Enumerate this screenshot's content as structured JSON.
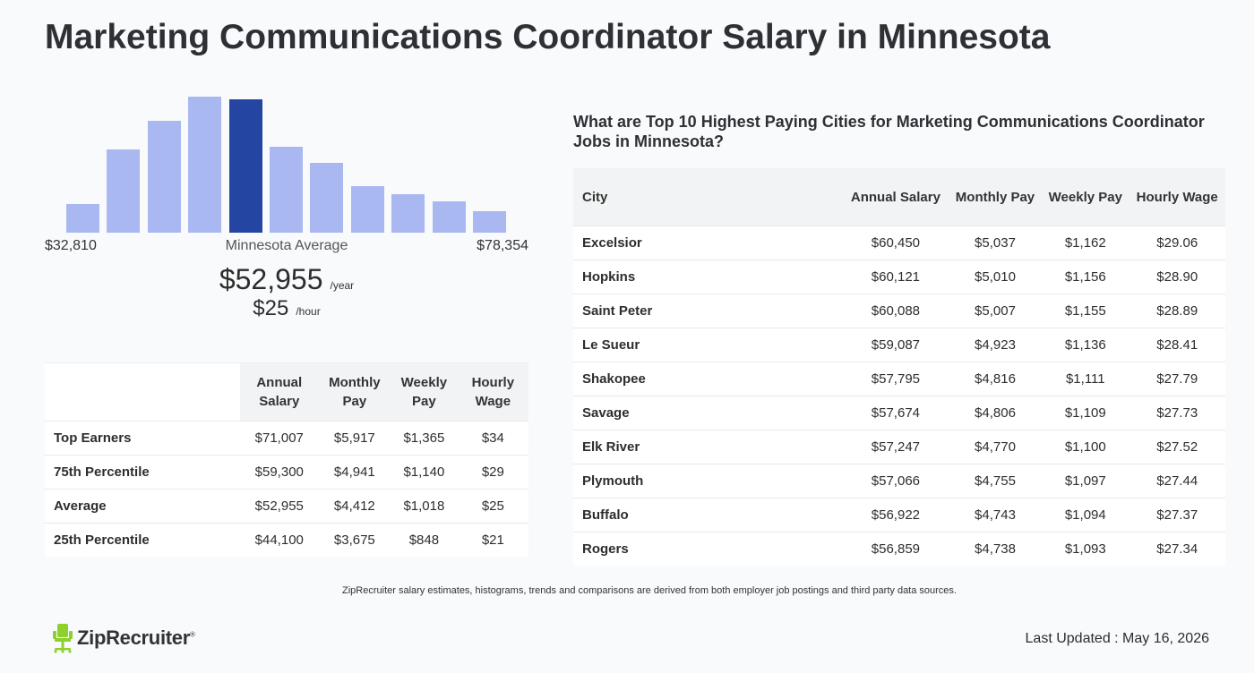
{
  "page": {
    "title": "Marketing Communications Coordinator Salary in Minnesota"
  },
  "histogram": {
    "min_label": "$32,810",
    "max_label": "$78,354",
    "avg_label": "Minnesota Average",
    "avg_annual": "$52,955",
    "annual_unit": "/year",
    "avg_hourly": "$25",
    "hourly_unit": "/hour",
    "bar_color": "#aab8f2",
    "highlight_color": "#2545a3",
    "highlight_index": 4,
    "bar_heights_pct": [
      21,
      61,
      82,
      100,
      98,
      63,
      51,
      34,
      28,
      23,
      16
    ]
  },
  "percentile_table": {
    "headers": [
      "Annual Salary",
      "Monthly Pay",
      "Weekly Pay",
      "Hourly Wage"
    ],
    "rows": [
      {
        "label": "Top Earners",
        "annual": "$71,007",
        "monthly": "$5,917",
        "weekly": "$1,365",
        "hourly": "$34"
      },
      {
        "label": "75th Percentile",
        "annual": "$59,300",
        "monthly": "$4,941",
        "weekly": "$1,140",
        "hourly": "$29"
      },
      {
        "label": "Average",
        "annual": "$52,955",
        "monthly": "$4,412",
        "weekly": "$1,018",
        "hourly": "$25"
      },
      {
        "label": "25th Percentile",
        "annual": "$44,100",
        "monthly": "$3,675",
        "weekly": "$848",
        "hourly": "$21"
      }
    ]
  },
  "cities": {
    "heading": "What are Top 10 Highest Paying Cities for Marketing Communications Coordinator Jobs in Minnesota?",
    "headers": [
      "City",
      "Annual Salary",
      "Monthly Pay",
      "Weekly Pay",
      "Hourly Wage"
    ],
    "rows": [
      {
        "city": "Excelsior",
        "annual": "$60,450",
        "monthly": "$5,037",
        "weekly": "$1,162",
        "hourly": "$29.06"
      },
      {
        "city": "Hopkins",
        "annual": "$60,121",
        "monthly": "$5,010",
        "weekly": "$1,156",
        "hourly": "$28.90"
      },
      {
        "city": "Saint Peter",
        "annual": "$60,088",
        "monthly": "$5,007",
        "weekly": "$1,155",
        "hourly": "$28.89"
      },
      {
        "city": "Le Sueur",
        "annual": "$59,087",
        "monthly": "$4,923",
        "weekly": "$1,136",
        "hourly": "$28.41"
      },
      {
        "city": "Shakopee",
        "annual": "$57,795",
        "monthly": "$4,816",
        "weekly": "$1,111",
        "hourly": "$27.79"
      },
      {
        "city": "Savage",
        "annual": "$57,674",
        "monthly": "$4,806",
        "weekly": "$1,109",
        "hourly": "$27.73"
      },
      {
        "city": "Elk River",
        "annual": "$57,247",
        "monthly": "$4,770",
        "weekly": "$1,100",
        "hourly": "$27.52"
      },
      {
        "city": "Plymouth",
        "annual": "$57,066",
        "monthly": "$4,755",
        "weekly": "$1,097",
        "hourly": "$27.44"
      },
      {
        "city": "Buffalo",
        "annual": "$56,922",
        "monthly": "$4,743",
        "weekly": "$1,094",
        "hourly": "$27.37"
      },
      {
        "city": "Rogers",
        "annual": "$56,859",
        "monthly": "$4,738",
        "weekly": "$1,093",
        "hourly": "$27.34"
      }
    ]
  },
  "footer": {
    "disclaimer": "ZipRecruiter salary estimates, histograms, trends and comparisons are derived from both employer job postings and third party data sources.",
    "logo_text": "ZipRecruiter",
    "logo_mark": "®",
    "logo_icon": "chair-icon",
    "logo_color": "#8ed12c",
    "last_updated": "Last Updated : May 16, 2026"
  }
}
